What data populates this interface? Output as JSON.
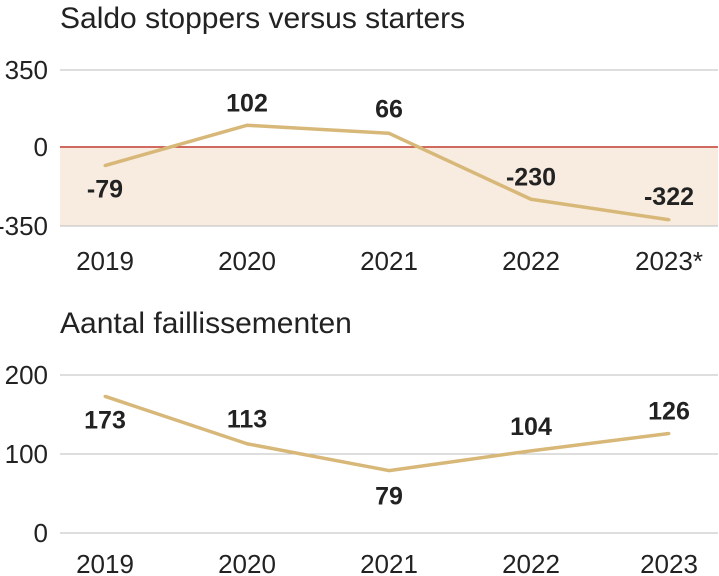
{
  "colors": {
    "line": "#d8b878",
    "grid": "#bdbdbd",
    "zero_line": "#c0392b",
    "negative_fill": "#f8ece0",
    "text": "#222222"
  },
  "chart_data": [
    {
      "type": "line",
      "title": "Saldo stoppers versus starters",
      "categories": [
        "2019",
        "2020",
        "2021",
        "2022",
        "2023*"
      ],
      "values": [
        -79,
        102,
        66,
        -230,
        -322
      ],
      "ylim": [
        -350,
        350
      ],
      "yticks": [
        "350",
        "0",
        "-350"
      ],
      "data_labels": [
        "-79",
        "102",
        "66",
        "-230",
        "-322"
      ],
      "grid": true,
      "negative_region_shaded": true
    },
    {
      "type": "line",
      "title": "Aantal faillissementen",
      "categories": [
        "2019",
        "2020",
        "2021",
        "2022",
        "2023"
      ],
      "values": [
        173,
        113,
        79,
        104,
        126
      ],
      "ylim": [
        0,
        200
      ],
      "yticks": [
        "200",
        "100",
        "0"
      ],
      "data_labels": [
        "173",
        "113",
        "79",
        "104",
        "126"
      ],
      "grid": true
    }
  ]
}
